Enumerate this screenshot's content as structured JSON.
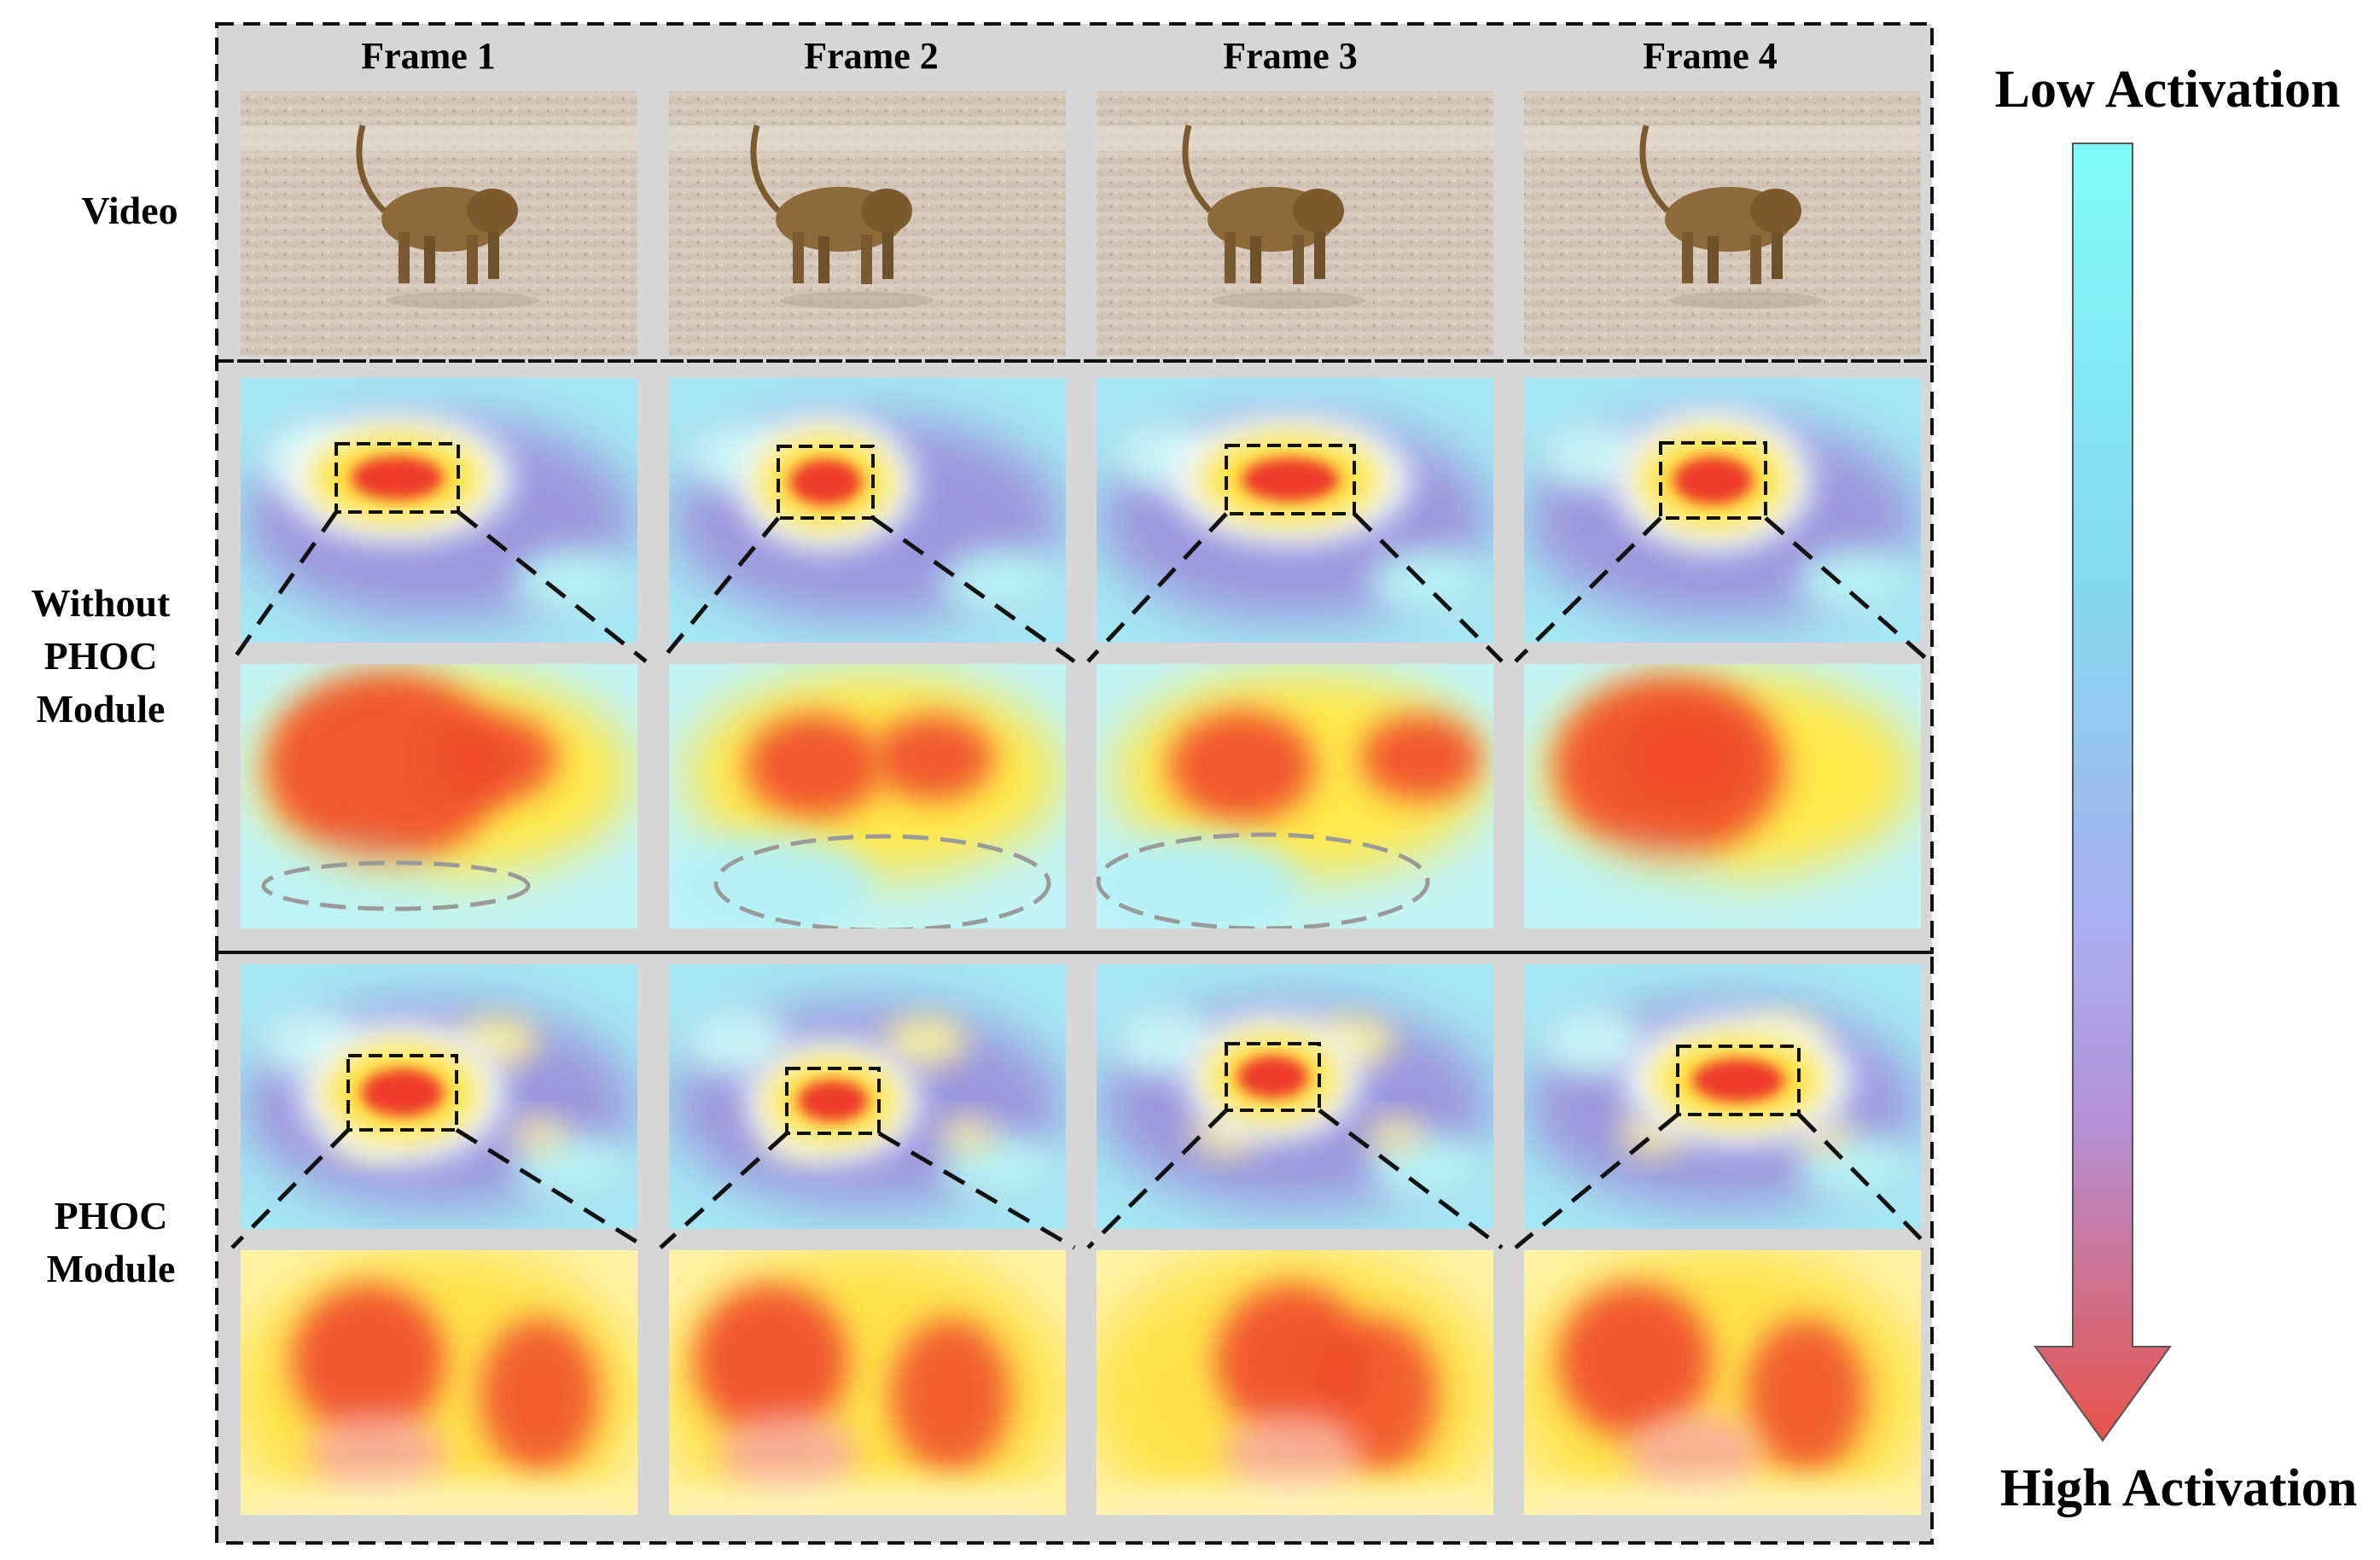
{
  "columns": [
    "Frame 1",
    "Frame 2",
    "Frame 3",
    "Frame 4"
  ],
  "rows": {
    "video": "Video",
    "without": [
      "Without",
      "PHOC",
      "Module"
    ],
    "phoc": [
      "PHOC",
      "Module"
    ]
  },
  "legend": {
    "low": "Low Activation",
    "high": "High Activation",
    "top_color": "#7ffbfb",
    "bottom_color": "#e8524a"
  }
}
